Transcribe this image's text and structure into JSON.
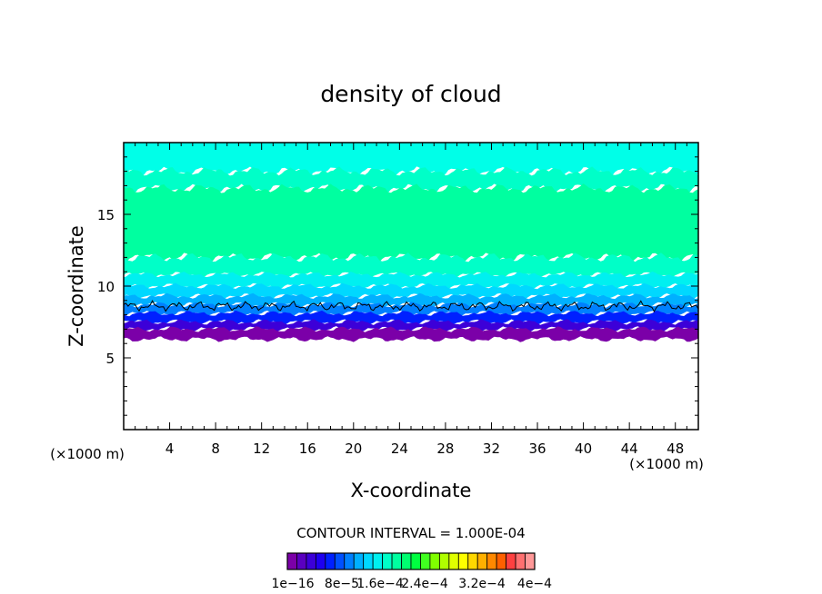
{
  "chart_data": {
    "type": "heatmap",
    "title": "density of cloud",
    "xlabel": "X-coordinate",
    "ylabel": "Z-coordinate",
    "x_unit": "(×1000 m)",
    "y_unit": "(×1000 m)",
    "xlim": [
      0,
      50
    ],
    "ylim": [
      0,
      20
    ],
    "x_ticks": [
      4,
      8,
      12,
      16,
      20,
      24,
      28,
      32,
      36,
      40,
      44,
      48
    ],
    "y_ticks": [
      5,
      10,
      15
    ],
    "contour_interval_label": "CONTOUR INTERVAL = 1.000E-04",
    "colorbar": {
      "tick_labels": [
        "1e−16",
        "8e−5",
        "1.6e−4",
        "2.4e−4",
        "3.2e−4",
        "4e−4"
      ],
      "tick_values": [
        1e-16,
        8e-05,
        0.00016,
        0.00024,
        0.00032,
        0.0004
      ],
      "colors": [
        "#7b00a8",
        "#5a00c0",
        "#3c00d8",
        "#1e00f0",
        "#0020ff",
        "#0050ff",
        "#0080ff",
        "#00b0ff",
        "#00d8ff",
        "#00f0f0",
        "#00ffc8",
        "#00ffa0",
        "#00ff70",
        "#00ff40",
        "#40ff20",
        "#80ff00",
        "#b0ff00",
        "#e0ff00",
        "#ffff00",
        "#ffd800",
        "#ffb000",
        "#ff8800",
        "#ff6000",
        "#ff4040",
        "#ff7070",
        "#ff9898"
      ]
    },
    "bands": [
      {
        "z_bottom": 18.0,
        "z_top": 20.0,
        "color": "#00ffe8"
      },
      {
        "z_bottom": 16.8,
        "z_top": 18.0,
        "color": "#00ffc8"
      },
      {
        "z_bottom": 12.0,
        "z_top": 16.8,
        "color": "#00ffa0"
      },
      {
        "z_bottom": 10.8,
        "z_top": 12.0,
        "color": "#00ffc8"
      },
      {
        "z_bottom": 10.0,
        "z_top": 10.8,
        "color": "#00f0f0"
      },
      {
        "z_bottom": 9.3,
        "z_top": 10.0,
        "color": "#00d8ff"
      },
      {
        "z_bottom": 8.7,
        "z_top": 9.3,
        "color": "#00b0ff"
      },
      {
        "z_bottom": 8.1,
        "z_top": 8.7,
        "color": "#0080ff"
      },
      {
        "z_bottom": 7.5,
        "z_top": 8.1,
        "color": "#0020ff"
      },
      {
        "z_bottom": 7.0,
        "z_top": 7.5,
        "color": "#3c00d8"
      },
      {
        "z_bottom": 6.3,
        "z_top": 7.0,
        "color": "#7b00a8"
      }
    ],
    "cloud_base_z": 6.3,
    "contour_z_approx": 8.6
  }
}
